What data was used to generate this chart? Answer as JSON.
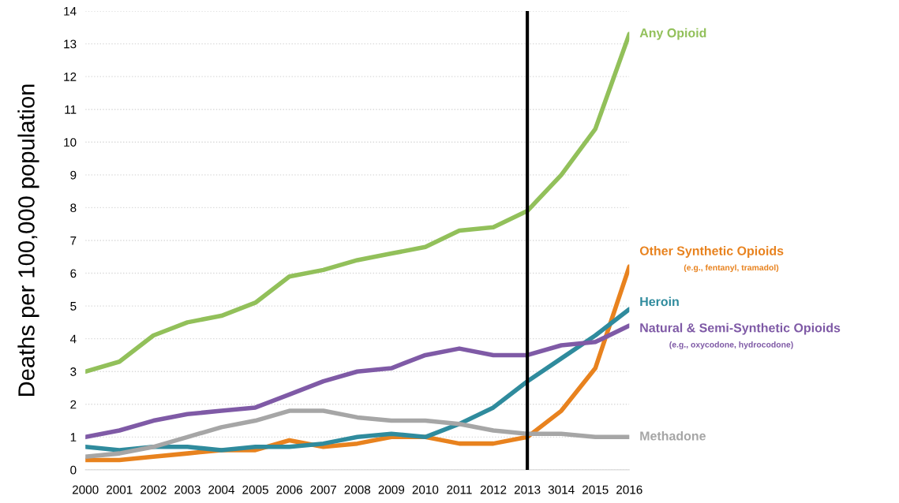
{
  "chart_data": {
    "type": "line",
    "ylabel": "Deaths per 100,000 population",
    "categories": [
      "2000",
      "2001",
      "2002",
      "2003",
      "2004",
      "2005",
      "2006",
      "2007",
      "2008",
      "2009",
      "2010",
      "2011",
      "2012",
      "2013",
      "3014",
      "2015",
      "2016"
    ],
    "series": [
      {
        "name": "Any Opioid",
        "color": "#92c05a",
        "values": [
          3.0,
          3.3,
          4.1,
          4.5,
          4.7,
          5.1,
          5.9,
          6.1,
          6.4,
          6.6,
          6.8,
          7.3,
          7.4,
          7.9,
          9.0,
          10.4,
          13.3
        ]
      },
      {
        "name": "Other Synthetic Opioids",
        "color": "#e8821e",
        "values": [
          0.3,
          0.3,
          0.4,
          0.5,
          0.6,
          0.6,
          0.9,
          0.7,
          0.8,
          1.0,
          1.0,
          0.8,
          0.8,
          1.0,
          1.8,
          3.1,
          6.2
        ]
      },
      {
        "name": "Heroin",
        "color": "#2f8b9d",
        "values": [
          0.7,
          0.6,
          0.7,
          0.7,
          0.6,
          0.7,
          0.7,
          0.8,
          1.0,
          1.1,
          1.0,
          1.4,
          1.9,
          2.7,
          3.4,
          4.1,
          4.9
        ]
      },
      {
        "name": "Natural & Semi-Synthetic Opioids",
        "color": "#7f5aa6",
        "values": [
          1.0,
          1.2,
          1.5,
          1.7,
          1.8,
          1.9,
          2.3,
          2.7,
          3.0,
          3.1,
          3.5,
          3.7,
          3.5,
          3.5,
          3.8,
          3.9,
          4.4
        ]
      },
      {
        "name": "Methadone",
        "color": "#a6a6a6",
        "values": [
          0.4,
          0.5,
          0.7,
          1.0,
          1.3,
          1.5,
          1.8,
          1.8,
          1.6,
          1.5,
          1.5,
          1.4,
          1.2,
          1.1,
          1.1,
          1.0,
          1.0
        ]
      }
    ],
    "annotations": [
      "(e.g., fentanyl, tramadol)",
      "(e.g., oxycodone, hydrocodone)"
    ],
    "ref_lines": [
      {
        "axis": "x",
        "value": "2013",
        "color": "#000000"
      }
    ],
    "ylim": [
      0,
      14
    ],
    "yticks": [
      0,
      1,
      2,
      3,
      4,
      5,
      6,
      7,
      8,
      9,
      10,
      11,
      12,
      13,
      14
    ],
    "grid": "y",
    "legend": false,
    "marker": "none",
    "line_style": "solid"
  }
}
